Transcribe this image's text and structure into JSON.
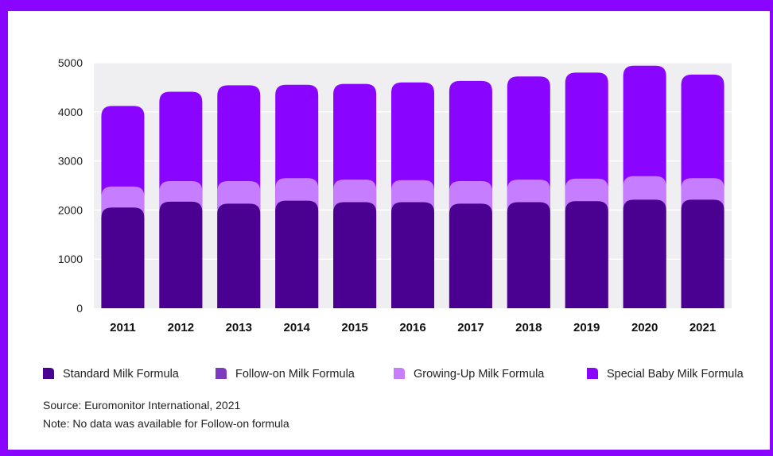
{
  "chart_data": {
    "type": "bar",
    "stacked": true,
    "categories": [
      "2011",
      "2012",
      "2013",
      "2014",
      "2015",
      "2016",
      "2017",
      "2018",
      "2019",
      "2020",
      "2021"
    ],
    "series": [
      {
        "name": "Standard Milk Formula",
        "color": "#4a0090",
        "values": [
          2050,
          2170,
          2130,
          2190,
          2160,
          2160,
          2130,
          2160,
          2180,
          2210,
          2210
        ]
      },
      {
        "name": "Follow-on Milk Formula",
        "color": "#7c3bbf",
        "values": [
          0,
          0,
          0,
          0,
          0,
          0,
          0,
          0,
          0,
          0,
          0
        ]
      },
      {
        "name": "Growing-Up Milk Formula",
        "color": "#c77dff",
        "values": [
          430,
          420,
          460,
          460,
          460,
          450,
          460,
          460,
          460,
          480,
          440
        ]
      },
      {
        "name": "Special Baby Milk Formula",
        "color": "#8a05ff",
        "values": [
          1640,
          1820,
          1950,
          1900,
          1950,
          1990,
          2040,
          2100,
          2160,
          2250,
          2110
        ]
      }
    ],
    "y_ticks": [
      "0",
      "1000",
      "2000",
      "3000",
      "4000",
      "5000"
    ],
    "ylim": [
      0,
      5000
    ],
    "grid": true,
    "legend_position": "bottom"
  },
  "footer": {
    "source": "Source: Euromonitor International, 2021",
    "note": "Note: No data was available for Follow-on formula"
  }
}
